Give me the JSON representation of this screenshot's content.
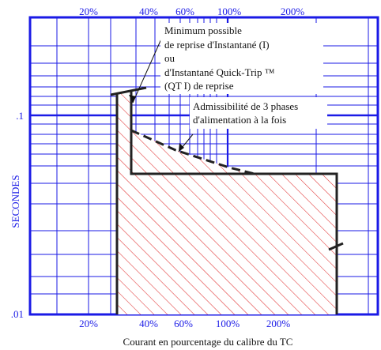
{
  "chart_data": {
    "type": "area",
    "title": "",
    "xlabel": "Courant en pourcentage du calibre du TC",
    "ylabel": "SECONDES",
    "x_scale": "log",
    "y_scale": "log",
    "x_tick_labels_top": [
      "20%",
      "40%",
      "60%",
      "100%",
      "200%"
    ],
    "x_tick_labels_bottom": [
      "20%",
      "40%",
      "60%",
      "100%",
      "200%"
    ],
    "x_tick_values": [
      20,
      40,
      60,
      100,
      200
    ],
    "y_tick_labels": [
      ".1",
      ".01"
    ],
    "y_tick_values": [
      0.1,
      0.01
    ],
    "annotations": [
      {
        "lines": [
          "Minimum possible",
          "de reprise d'Instantané (I)",
          "ou",
          "d'Instantané Quick-Trip ™",
          "(QT I) de reprise"
        ]
      },
      {
        "lines": [
          "Admissibilité de 3 phases",
          "d'alimentation à la fois"
        ]
      }
    ],
    "colors": {
      "grid": "#1a1ae6",
      "hatch": "#e03030",
      "outline": "#222222",
      "label": "#1a1ae6",
      "annotation": "#111111"
    }
  }
}
